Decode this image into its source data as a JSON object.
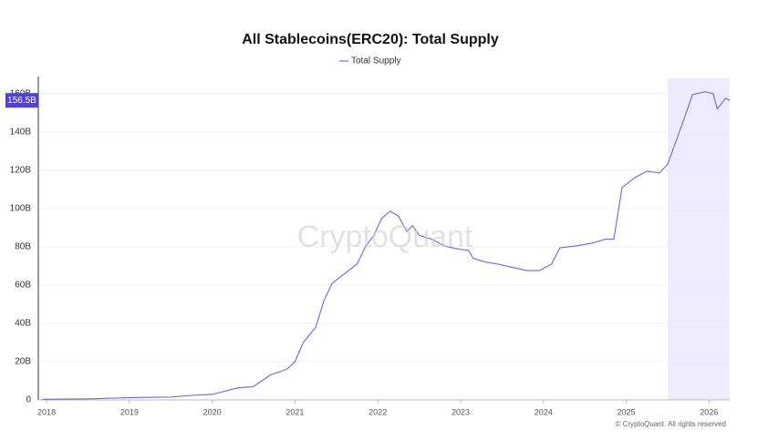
{
  "chart_data": {
    "type": "line",
    "title": "All Stablecoins(ERC20): Total Supply",
    "watermark": "CryptoQuant",
    "footer": "© CryptoQuant. All rights reserved",
    "legend_position": "top",
    "grid": true,
    "highlight_range": [
      2025.5,
      2026.25
    ],
    "highlight_color": "#efebff",
    "x": [
      2017.95,
      2018.5,
      2019.0,
      2019.5,
      2019.8,
      2020.0,
      2020.3,
      2020.5,
      2020.7,
      2020.9,
      2021.0,
      2021.1,
      2021.25,
      2021.35,
      2021.45,
      2021.6,
      2021.75,
      2021.85,
      2021.95,
      2022.05,
      2022.15,
      2022.25,
      2022.35,
      2022.42,
      2022.5,
      2022.65,
      2022.8,
      2022.95,
      2023.1,
      2023.15,
      2023.3,
      2023.45,
      2023.6,
      2023.8,
      2023.95,
      2024.1,
      2024.2,
      2024.4,
      2024.6,
      2024.75,
      2024.85,
      2024.95,
      2025.1,
      2025.25,
      2025.4,
      2025.5,
      2025.6,
      2025.7,
      2025.8,
      2025.95,
      2026.05,
      2026.1,
      2026.2,
      2026.25
    ],
    "series": [
      {
        "name": "Total Supply",
        "color": "#7b70d8",
        "values": [
          0.3,
          0.5,
          1.2,
          1.5,
          2.5,
          2.9,
          6.2,
          7,
          13,
          16,
          20,
          30,
          38,
          52,
          61,
          66,
          71,
          80,
          86,
          95,
          98.6,
          96,
          88,
          91,
          86,
          84,
          80.5,
          79,
          78,
          74,
          72,
          71,
          69.5,
          67.6,
          67.6,
          71,
          79.5,
          80.5,
          82,
          84,
          84,
          111,
          116,
          119.5,
          118.6,
          123,
          135,
          147,
          159.5,
          161,
          160,
          152,
          157.6,
          156.5
        ]
      }
    ],
    "last_value": 156.5,
    "last_value_label": "156.5B",
    "xlim": [
      2017.9,
      2026.25
    ],
    "xticks": [
      2018,
      2019,
      2020,
      2021,
      2022,
      2023,
      2024,
      2025,
      2026
    ],
    "ylim": [
      0,
      168
    ],
    "yticks": [
      0,
      {
        "value": 20,
        "label": "20B"
      },
      {
        "value": 40,
        "label": "40B"
      },
      {
        "value": 60,
        "label": "60B"
      },
      {
        "value": 80,
        "label": "80B"
      },
      {
        "value": 100,
        "label": "100B"
      },
      {
        "value": 120,
        "label": "120B"
      },
      {
        "value": 140,
        "label": "140B"
      },
      {
        "value": 160,
        "label": "160B"
      }
    ]
  }
}
